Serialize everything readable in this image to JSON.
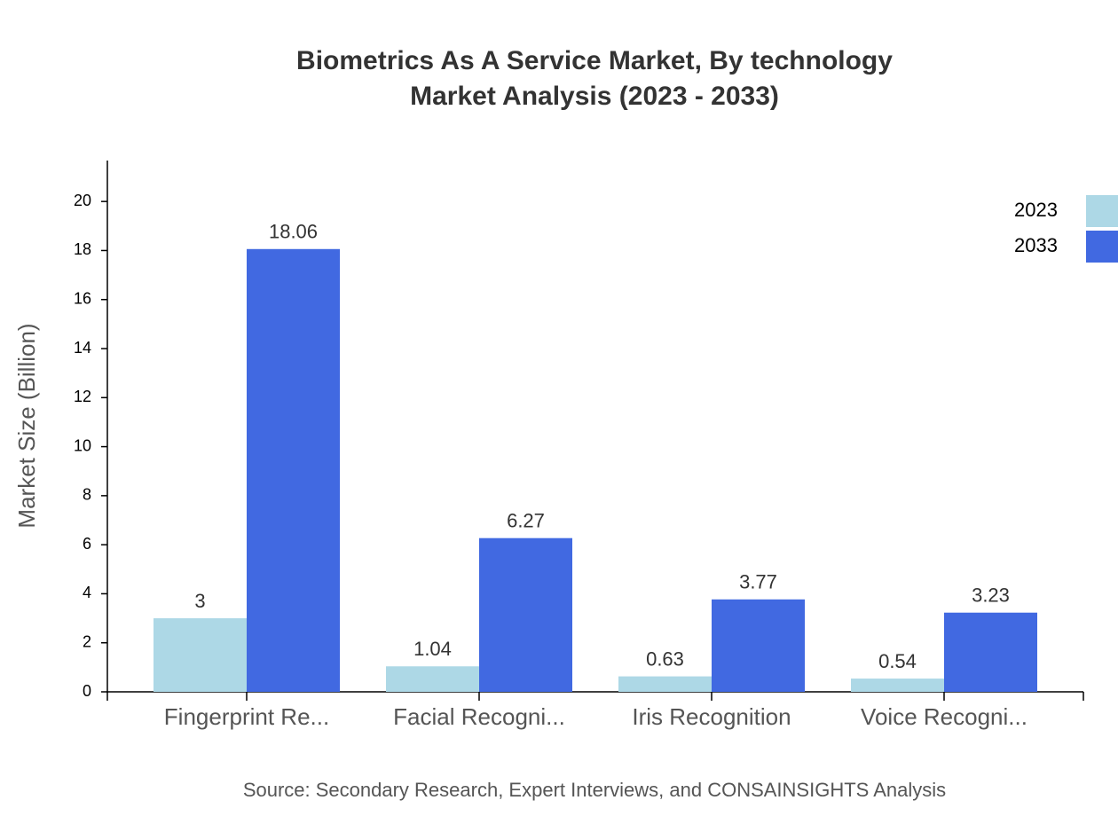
{
  "chart_data": {
    "type": "bar",
    "title": "Biometrics As A Service Market, By technology",
    "subtitle": "Market Analysis (2023 - 2033)",
    "y_label": "Market Size (Billion)",
    "source": "Source: Secondary Research, Expert Interviews, and CONSAINSIGHTS Analysis",
    "categories": [
      "Fingerprint Re...",
      "Facial Recogni...",
      "Iris Recognition",
      "Voice Recogni..."
    ],
    "series": [
      {
        "name": "2023",
        "color": "#add8e6",
        "values": [
          3,
          1.04,
          0.63,
          0.54
        ]
      },
      {
        "name": "2033",
        "color": "#4169e1",
        "values": [
          18.06,
          6.27,
          3.77,
          3.23
        ]
      }
    ],
    "ylim": [
      0,
      21.67
    ],
    "yticks": [
      0,
      2,
      4,
      6,
      8,
      10,
      12,
      14,
      16,
      18,
      20
    ],
    "grid": false,
    "legend": "top-right"
  }
}
